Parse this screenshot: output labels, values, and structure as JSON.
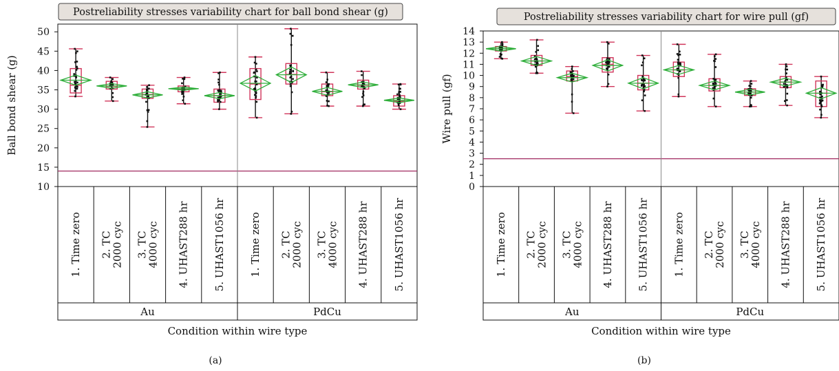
{
  "panels": [
    {
      "caption": "(a)"
    },
    {
      "caption": "(b)"
    }
  ],
  "chart_data": [
    {
      "type": "box",
      "title": "Postreliability stresses variability chart for ball bond shear (g)",
      "ylabel": "Ball bond shear (g)",
      "xlabel": "Condition within wire type",
      "ylim": [
        10,
        52
      ],
      "yticks": [
        10,
        15,
        20,
        25,
        30,
        35,
        40,
        45,
        50
      ],
      "reference_line": 14,
      "groups": [
        {
          "name": "Au",
          "conditions": [
            {
              "label": [
                "1. Time zero"
              ],
              "min": 33.3,
              "q1": 34.2,
              "median": 36.2,
              "q3": 40.5,
              "max": 45.6,
              "mean": 37.5,
              "ci": 1.3
            },
            {
              "label": [
                "2. TC",
                "2000 cyc"
              ],
              "min": 32.1,
              "q1": 35.2,
              "median": 35.9,
              "q3": 37.2,
              "max": 38.2,
              "mean": 36.0,
              "ci": 0.6
            },
            {
              "label": [
                "3. TC",
                "4000 cyc"
              ],
              "min": 25.4,
              "q1": 32.8,
              "median": 33.8,
              "q3": 35.2,
              "max": 36.2,
              "mean": 33.7,
              "ci": 0.8
            },
            {
              "label": [
                "4. UHAST288 hr"
              ],
              "min": 31.4,
              "q1": 34.5,
              "median": 35.2,
              "q3": 36.0,
              "max": 38.2,
              "mean": 35.3,
              "ci": 0.4
            },
            {
              "label": [
                "5. UHAST1056 hr"
              ],
              "min": 30.0,
              "q1": 31.8,
              "median": 33.5,
              "q3": 35.2,
              "max": 39.5,
              "mean": 33.5,
              "ci": 0.8
            }
          ]
        },
        {
          "name": "PdCu",
          "conditions": [
            {
              "label": [
                "1. Time zero"
              ],
              "min": 27.8,
              "q1": 32.5,
              "median": 36.5,
              "q3": 40.5,
              "max": 43.5,
              "mean": 36.7,
              "ci": 2.0
            },
            {
              "label": [
                "2. TC",
                "2000 cyc"
              ],
              "min": 28.8,
              "q1": 36.5,
              "median": 39.0,
              "q3": 41.8,
              "max": 50.8,
              "mean": 38.9,
              "ci": 2.0
            },
            {
              "label": [
                "3. TC",
                "4000 cyc"
              ],
              "min": 30.8,
              "q1": 33.5,
              "median": 34.5,
              "q3": 36.5,
              "max": 39.5,
              "mean": 34.6,
              "ci": 1.0
            },
            {
              "label": [
                "4. UHAST288 hr"
              ],
              "min": 30.8,
              "q1": 35.2,
              "median": 36.2,
              "q3": 37.5,
              "max": 39.8,
              "mean": 36.3,
              "ci": 0.7
            },
            {
              "label": [
                "5. UHAST1056 hr"
              ],
              "min": 30.0,
              "q1": 30.8,
              "median": 32.0,
              "q3": 33.5,
              "max": 36.5,
              "mean": 32.3,
              "ci": 0.6
            }
          ]
        }
      ]
    },
    {
      "type": "box",
      "title": "Postreliability stresses variability chart for wire pull (gf)",
      "ylabel": "Wire pull (gf)",
      "xlabel": "Condition within wire type",
      "ylim": [
        0,
        14
      ],
      "yticks": [
        0,
        1,
        2,
        3,
        4,
        5,
        6,
        7,
        8,
        9,
        10,
        11,
        12,
        13,
        14
      ],
      "ytick_labels": [
        "0",
        "1",
        "2",
        "3",
        "4",
        "5",
        "6",
        "7",
        "8",
        "9",
        "10",
        "11",
        "12",
        "13",
        "14"
      ],
      "reference_line": 2.5,
      "groups": [
        {
          "name": "Au",
          "conditions": [
            {
              "label": [
                "1. Time zero"
              ],
              "min": 11.5,
              "q1": 12.2,
              "median": 12.4,
              "q3": 12.6,
              "max": 13.0,
              "mean": 12.4,
              "ci": 0.2
            },
            {
              "label": [
                "2. TC",
                "2000 cyc"
              ],
              "min": 10.2,
              "q1": 10.9,
              "median": 11.3,
              "q3": 11.8,
              "max": 13.2,
              "mean": 11.3,
              "ci": 0.4
            },
            {
              "label": [
                "3. TC",
                "4000 cyc"
              ],
              "min": 6.6,
              "q1": 9.5,
              "median": 9.9,
              "q3": 10.4,
              "max": 10.8,
              "mean": 9.8,
              "ci": 0.4
            },
            {
              "label": [
                "4. UHAST288 hr"
              ],
              "min": 9.0,
              "q1": 10.3,
              "median": 11.0,
              "q3": 11.6,
              "max": 13.0,
              "mean": 10.9,
              "ci": 0.5
            },
            {
              "label": [
                "5. UHAST1056 hr"
              ],
              "min": 6.8,
              "q1": 8.7,
              "median": 9.3,
              "q3": 10.0,
              "max": 11.8,
              "mean": 9.3,
              "ci": 0.5
            }
          ]
        },
        {
          "name": "PdCu",
          "conditions": [
            {
              "label": [
                "1. Time zero"
              ],
              "min": 8.1,
              "q1": 9.9,
              "median": 10.5,
              "q3": 11.2,
              "max": 12.8,
              "mean": 10.5,
              "ci": 0.4
            },
            {
              "label": [
                "2. TC",
                "2000 cyc"
              ],
              "min": 7.2,
              "q1": 8.6,
              "median": 9.1,
              "q3": 9.7,
              "max": 11.9,
              "mean": 9.1,
              "ci": 0.4
            },
            {
              "label": [
                "3. TC",
                "4000 cyc"
              ],
              "min": 7.2,
              "q1": 8.2,
              "median": 8.5,
              "q3": 8.8,
              "max": 9.5,
              "mean": 8.5,
              "ci": 0.25
            },
            {
              "label": [
                "4. UHAST288 hr"
              ],
              "min": 7.3,
              "q1": 8.9,
              "median": 9.4,
              "q3": 9.9,
              "max": 11.0,
              "mean": 9.4,
              "ci": 0.35
            },
            {
              "label": [
                "5. UHAST1056 hr"
              ],
              "min": 6.2,
              "q1": 7.2,
              "median": 8.4,
              "q3": 9.5,
              "max": 9.9,
              "mean": 8.4,
              "ci": 0.5
            }
          ]
        }
      ]
    }
  ],
  "colors": {
    "box": "#d0345a",
    "whisker": "#111111",
    "diamond": "#2fae3a",
    "reference_line": "#a0285f",
    "points": "#111111",
    "title_bg": "#e6e1dc",
    "divider": "#8a8a8a"
  }
}
